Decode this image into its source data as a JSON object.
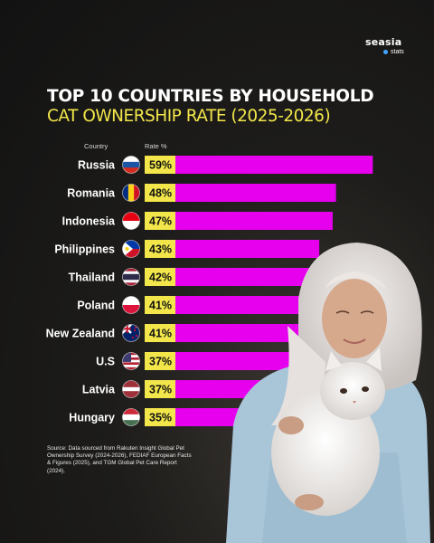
{
  "brand": {
    "name": "seasia",
    "sub": "stats",
    "accent": "#3fa7ff"
  },
  "title_line1": "TOP 10 COUNTRIES BY HOUSEHOLD",
  "title_line2": "CAT OWNERSHIP RATE (2025-2026)",
  "headers": {
    "country": "Country",
    "rate": "Rate %"
  },
  "colors": {
    "bar": "#e600ee",
    "label_bg": "#f2e64a",
    "title_accent": "#f2e64a"
  },
  "source": "Source: Data sourced from Rakuten Insight Global Pet Ownership Survey (2024-2026), FEDIAF European Facts & Figures (2025), and TGM Global Pet Care Report (2024).",
  "chart_data": {
    "type": "bar",
    "orientation": "horizontal",
    "categories": [
      "Russia",
      "Romania",
      "Indonesia",
      "Philippines",
      "Thailand",
      "Poland",
      "New Zealand",
      "U.S",
      "Latvia",
      "Hungary"
    ],
    "values": [
      59,
      48,
      47,
      43,
      42,
      41,
      41,
      37,
      37,
      35
    ],
    "value_labels": [
      "59%",
      "48%",
      "47%",
      "43%",
      "42%",
      "41%",
      "41%",
      "37%",
      "37%",
      "35%"
    ],
    "flags": [
      "flag-russia-icon",
      "flag-romania-icon",
      "flag-indonesia-icon",
      "flag-philippines-icon",
      "flag-thailand-icon",
      "flag-poland-icon",
      "flag-new-zealand-icon",
      "flag-us-icon",
      "flag-latvia-icon",
      "flag-hungary-icon"
    ],
    "xlim": [
      0,
      60
    ]
  }
}
